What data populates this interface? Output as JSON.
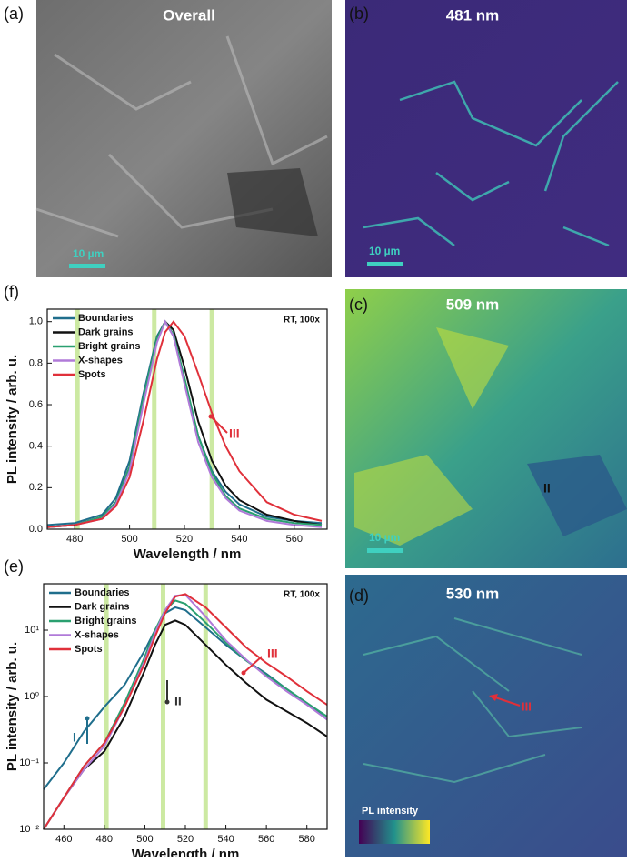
{
  "images": [
    {
      "label": "(a)",
      "title": "Overall",
      "scale_bar": "10 µm"
    },
    {
      "label": "(b)",
      "title": "481 nm",
      "scale_bar": "10 µm"
    },
    {
      "label": "(c)",
      "title": "509 nm",
      "scale_bar": "10 µm",
      "annotation": "II"
    },
    {
      "label": "(d)",
      "title": "530 nm",
      "annotation": "III",
      "colorbar": "PL intensity"
    }
  ],
  "chart_data": [
    {
      "type": "line",
      "panel": "(f)",
      "note": "RT, 100x",
      "xlabel": "Wavelength / nm",
      "ylabel": "PL intensity / arb. u.",
      "x": [
        470,
        480,
        490,
        495,
        500,
        505,
        510,
        513,
        516,
        520,
        525,
        530,
        535,
        540,
        550,
        560,
        570
      ],
      "series": [
        {
          "name": "Boundaries",
          "color": "#1f6e8c",
          "values": [
            0.02,
            0.03,
            0.07,
            0.15,
            0.33,
            0.65,
            0.93,
            1.0,
            0.93,
            0.72,
            0.45,
            0.28,
            0.18,
            0.12,
            0.06,
            0.04,
            0.03
          ]
        },
        {
          "name": "Dark grains",
          "color": "#111111",
          "values": [
            0.01,
            0.02,
            0.06,
            0.13,
            0.3,
            0.62,
            0.92,
            1.0,
            0.96,
            0.78,
            0.52,
            0.33,
            0.21,
            0.14,
            0.07,
            0.04,
            0.02
          ]
        },
        {
          "name": "Bright grains",
          "color": "#2aa070",
          "values": [
            0.01,
            0.02,
            0.06,
            0.13,
            0.3,
            0.63,
            0.92,
            1.0,
            0.94,
            0.73,
            0.45,
            0.27,
            0.16,
            0.1,
            0.05,
            0.03,
            0.02
          ]
        },
        {
          "name": "X-shapes",
          "color": "#b07ad8",
          "values": [
            0.01,
            0.02,
            0.05,
            0.12,
            0.28,
            0.6,
            0.9,
            1.0,
            0.93,
            0.7,
            0.42,
            0.25,
            0.15,
            0.09,
            0.04,
            0.02,
            0.01
          ]
        },
        {
          "name": "Spots",
          "color": "#e0303a",
          "values": [
            0.01,
            0.02,
            0.05,
            0.11,
            0.25,
            0.52,
            0.82,
            0.95,
            1.0,
            0.93,
            0.75,
            0.56,
            0.4,
            0.28,
            0.13,
            0.07,
            0.04
          ]
        }
      ],
      "bands": [
        481,
        509,
        530
      ],
      "annotations": [
        "III"
      ],
      "xlim": [
        470,
        572
      ],
      "xticks": [
        480,
        500,
        520,
        540,
        560
      ],
      "ylim": [
        0,
        1.06
      ],
      "yticks": [
        {
          "value": 0,
          "label": "0.0"
        },
        0.2,
        0.4,
        0.6,
        0.8,
        {
          "value": 1,
          "label": "1.0"
        }
      ],
      "legend": "upper left"
    },
    {
      "type": "line",
      "panel": "(e)",
      "note": "RT, 100x",
      "xlabel": "Wavelength / nm",
      "ylabel": "PL intensity / arb. u.",
      "log_y": true,
      "x": [
        450,
        460,
        470,
        480,
        490,
        500,
        505,
        510,
        515,
        520,
        530,
        540,
        550,
        560,
        570,
        580,
        590
      ],
      "series": [
        {
          "name": "Boundaries",
          "color": "#1f6e8c",
          "values": [
            0.04,
            0.1,
            0.3,
            0.7,
            1.5,
            5,
            10,
            18,
            22,
            20,
            11,
            6,
            3.5,
            2.2,
            1.3,
            0.8,
            0.45
          ]
        },
        {
          "name": "Dark grains",
          "color": "#111111",
          "values": [
            0.01,
            0.03,
            0.08,
            0.15,
            0.5,
            2.5,
            6,
            12,
            14,
            12,
            6,
            3,
            1.6,
            0.9,
            0.6,
            0.4,
            0.25
          ]
        },
        {
          "name": "Bright grains",
          "color": "#2aa070",
          "values": [
            0.01,
            0.03,
            0.09,
            0.2,
            0.8,
            4,
            10,
            20,
            28,
            25,
            13,
            6.5,
            3.5,
            2.1,
            1.3,
            0.8,
            0.5
          ]
        },
        {
          "name": "X-shapes",
          "color": "#b07ad8",
          "values": [
            0.01,
            0.03,
            0.08,
            0.18,
            0.7,
            3.5,
            9,
            20,
            33,
            34,
            16,
            7,
            3.6,
            2,
            1.2,
            0.75,
            0.45
          ]
        },
        {
          "name": "Spots",
          "color": "#e0303a",
          "values": [
            0.01,
            0.03,
            0.09,
            0.2,
            0.7,
            3.2,
            8,
            18,
            32,
            35,
            22,
            11,
            5.5,
            3.2,
            2,
            1.2,
            0.75
          ]
        }
      ],
      "bands": [
        481,
        509,
        530
      ],
      "annotations": [
        "I",
        "II",
        "III"
      ],
      "xlim": [
        450,
        590
      ],
      "xticks": [
        460,
        480,
        500,
        520,
        540,
        560,
        580
      ],
      "ylim": [
        0.01,
        50
      ],
      "yticks": [
        {
          "value": 0.01,
          "label": "10⁻²"
        },
        {
          "value": 0.1,
          "label": "10⁻¹"
        },
        {
          "value": 1,
          "label": "10⁰"
        },
        {
          "value": 10,
          "label": "10¹"
        }
      ],
      "legend": "upper left"
    }
  ]
}
